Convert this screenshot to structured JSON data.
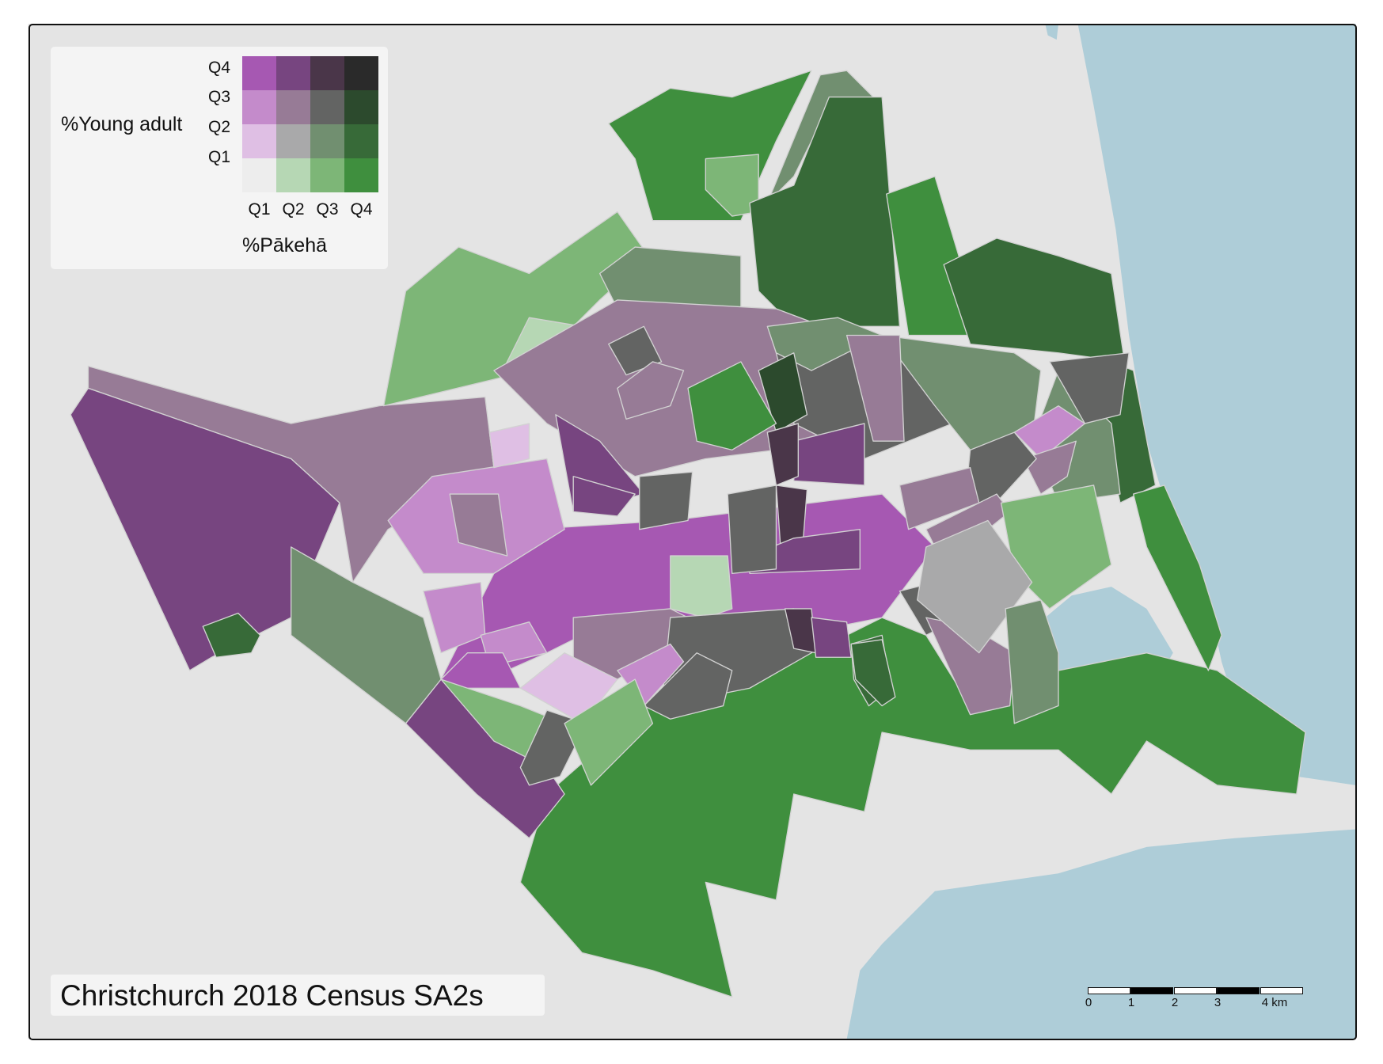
{
  "title": "Christchurch 2018 Census SA2s",
  "legend": {
    "y_label": "%Young adult",
    "x_label": "%Pākehā",
    "row_labels": [
      "Q4",
      "Q3",
      "Q2",
      "Q1"
    ],
    "col_labels": [
      "Q1",
      "Q2",
      "Q3",
      "Q4"
    ],
    "colors": [
      [
        "#a658b2",
        "#774580",
        "#4a3649",
        "#2a2a2a"
      ],
      [
        "#c48bcb",
        "#977b96",
        "#636463",
        "#2c4a2d"
      ],
      [
        "#dfbfe4",
        "#a9a9aa",
        "#718f70",
        "#376a38"
      ],
      [
        "#ededed",
        "#b6d7b4",
        "#7db677",
        "#3f8f3e"
      ]
    ]
  },
  "scale_bar": {
    "labels": [
      "0",
      "1",
      "2",
      "3",
      "4 km"
    ]
  },
  "colors": {
    "land": "#e4e4e4",
    "water": "#aecdd8",
    "border": "#d2d2d2"
  }
}
